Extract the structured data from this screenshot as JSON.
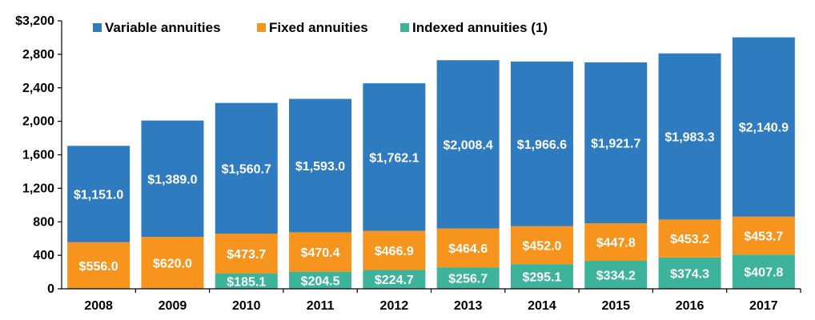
{
  "chart_data": {
    "type": "bar",
    "stacked": true,
    "categories": [
      "2008",
      "2009",
      "2010",
      "2011",
      "2012",
      "2013",
      "2014",
      "2015",
      "2016",
      "2017"
    ],
    "series": [
      {
        "name": "Indexed annuities (1)",
        "values": [
          0,
          0,
          185.1,
          204.5,
          224.7,
          256.7,
          295.1,
          334.2,
          374.3,
          407.8
        ],
        "labels": [
          "",
          "",
          "$185.1",
          "$204.5",
          "$224.7",
          "$256.7",
          "$295.1",
          "$334.2",
          "$374.3",
          "$407.8"
        ],
        "color": "#3cb39a"
      },
      {
        "name": "Fixed annuities",
        "values": [
          556.0,
          620.0,
          473.7,
          470.4,
          466.9,
          464.6,
          452.0,
          447.8,
          453.2,
          453.7
        ],
        "labels": [
          "$556.0",
          "$620.0",
          "$473.7",
          "$470.4",
          "$466.9",
          "$464.6",
          "$452.0",
          "$447.8",
          "$453.2",
          "$453.7"
        ],
        "color": "#f7941d"
      },
      {
        "name": "Variable annuities",
        "values": [
          1151.0,
          1389.0,
          1560.7,
          1593.0,
          1762.1,
          2008.4,
          1966.6,
          1921.7,
          1983.3,
          2140.9
        ],
        "labels": [
          "$1,151.0",
          "$1,389.0",
          "$1,560.7",
          "$1,593.0",
          "$1,762.1",
          "$2,008.4",
          "$1,966.6",
          "$1,921.7",
          "$1,983.3",
          "$2,140.9"
        ],
        "color": "#2f7bbf"
      }
    ],
    "legend": {
      "position": "top",
      "entries": [
        {
          "name": "Variable annuities",
          "color": "#2f7bbf"
        },
        {
          "name": "Fixed annuities",
          "color": "#f7941d"
        },
        {
          "name": "Indexed annuities (1)",
          "color": "#3cb39a"
        }
      ]
    },
    "ylim": [
      0,
      3200
    ],
    "yticks": [
      0,
      400,
      800,
      1200,
      1600,
      2000,
      2400,
      2800,
      3200
    ],
    "ytick_labels": [
      "0",
      "400",
      "800",
      "1,200",
      "1,600",
      "2,000",
      "2,400",
      "2,800",
      "$3,200"
    ],
    "grid": false,
    "title": "",
    "xlabel": "",
    "ylabel": ""
  }
}
